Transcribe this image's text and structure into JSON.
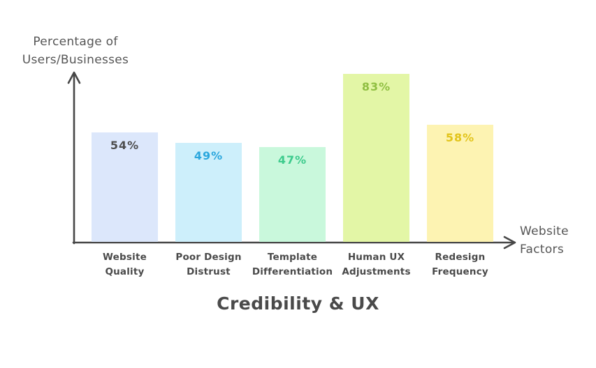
{
  "page": {
    "background": "#ffffff"
  },
  "chart_data": {
    "type": "bar",
    "title": "Credibility & UX",
    "xlabel": "Website Factors",
    "xlabel_lines": [
      "Website",
      "Factors"
    ],
    "ylabel": "Percentage of Users/Businesses",
    "ylabel_lines": [
      "Percentage of",
      "Users/Businesses"
    ],
    "categories": [
      "Website Quality",
      "Poor Design Distrust",
      "Template Differentiation",
      "Human UX Adjustments",
      "Redesign Frequency"
    ],
    "category_lines": [
      [
        "Website",
        "Quality"
      ],
      [
        "Poor Design",
        "Distrust"
      ],
      [
        "Template",
        "Differentiation"
      ],
      [
        "Human UX",
        "Adjustments"
      ],
      [
        "Redesign",
        "Frequency"
      ]
    ],
    "values": [
      54,
      49,
      47,
      83,
      58
    ],
    "value_labels": [
      "54%",
      "49%",
      "47%",
      "83%",
      "58%"
    ],
    "bar_fill_colors": [
      "#dce7fb",
      "#cdeffb",
      "#c9f8dc",
      "#e3f6a6",
      "#fdf3b2"
    ],
    "value_text_colors": [
      "#4d4d4d",
      "#2ba7dd",
      "#3ecb8d",
      "#90bf42",
      "#e2c41b"
    ],
    "axis_color": "#474747",
    "ylim": [
      0,
      85
    ],
    "grid": false,
    "legend": false
  }
}
